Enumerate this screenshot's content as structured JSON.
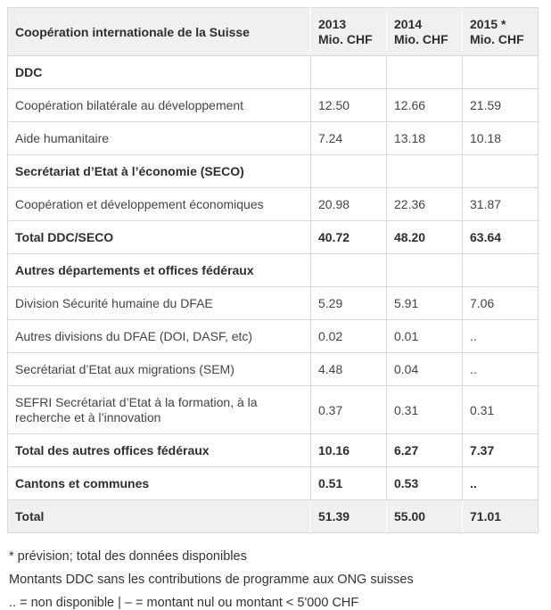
{
  "table": {
    "title": "Coopération internationale de la Suisse",
    "unit": "Mio. CHF",
    "years": [
      "2013",
      "2014",
      "2015 *"
    ],
    "rows": [
      {
        "label": "DDC",
        "values": [
          "",
          "",
          ""
        ],
        "style": "section"
      },
      {
        "label": "Coopération bilatérale au développement",
        "values": [
          "12.50",
          "12.66",
          "21.59"
        ],
        "style": "data"
      },
      {
        "label": "Aide humanitaire",
        "values": [
          "7.24",
          "13.18",
          "10.18"
        ],
        "style": "data"
      },
      {
        "label": "Secrétariat d’Etat à l’économie (SECO)",
        "values": [
          "",
          "",
          ""
        ],
        "style": "section"
      },
      {
        "label": "Coopération et développement économiques",
        "values": [
          "20.98",
          "22.36",
          "31.87"
        ],
        "style": "data"
      },
      {
        "label": "Total DDC/SECO",
        "values": [
          "40.72",
          "48.20",
          "63.64"
        ],
        "style": "subtotal"
      },
      {
        "label": "Autres départements et offices fédéraux",
        "values": [
          "",
          "",
          ""
        ],
        "style": "section"
      },
      {
        "label": "Division Sécurité humaine du DFAE",
        "values": [
          "5.29",
          "5.91",
          "7.06"
        ],
        "style": "data"
      },
      {
        "label": "Autres divisions du DFAE (DOI, DASF, etc)",
        "values": [
          "0.02",
          "0.01",
          ".."
        ],
        "style": "data"
      },
      {
        "label": "Secrétariat d’Etat aux migrations (SEM)",
        "values": [
          "4.48",
          "0.04",
          ".."
        ],
        "style": "data"
      },
      {
        "label": "SEFRI Secrétariat d’Etat à la formation, à la recherche et à l’innovation",
        "values": [
          "0.37",
          "0.31",
          "0.31"
        ],
        "style": "data"
      },
      {
        "label": "Total des autres offices fédéraux",
        "values": [
          "10.16",
          "6.27",
          "7.37"
        ],
        "style": "subtotal"
      },
      {
        "label": "Cantons et communes",
        "values": [
          "0.51",
          "0.53",
          ".."
        ],
        "style": "subtotal"
      },
      {
        "label": "Total",
        "values": [
          "51.39",
          "55.00",
          "71.01"
        ],
        "style": "grand"
      }
    ]
  },
  "footnotes": [
    "* prévision; total des données disponibles",
    "Montants DDC sans les contributions de programme aux ONG suisses",
    ".. = non disponible | – = montant nul ou montant < 5'000 CHF"
  ],
  "colors": {
    "shaded_row_bg": "#f0f0f0",
    "border": "#d9d9d9",
    "text": "#444444",
    "bold_text": "#2e2e2e"
  }
}
